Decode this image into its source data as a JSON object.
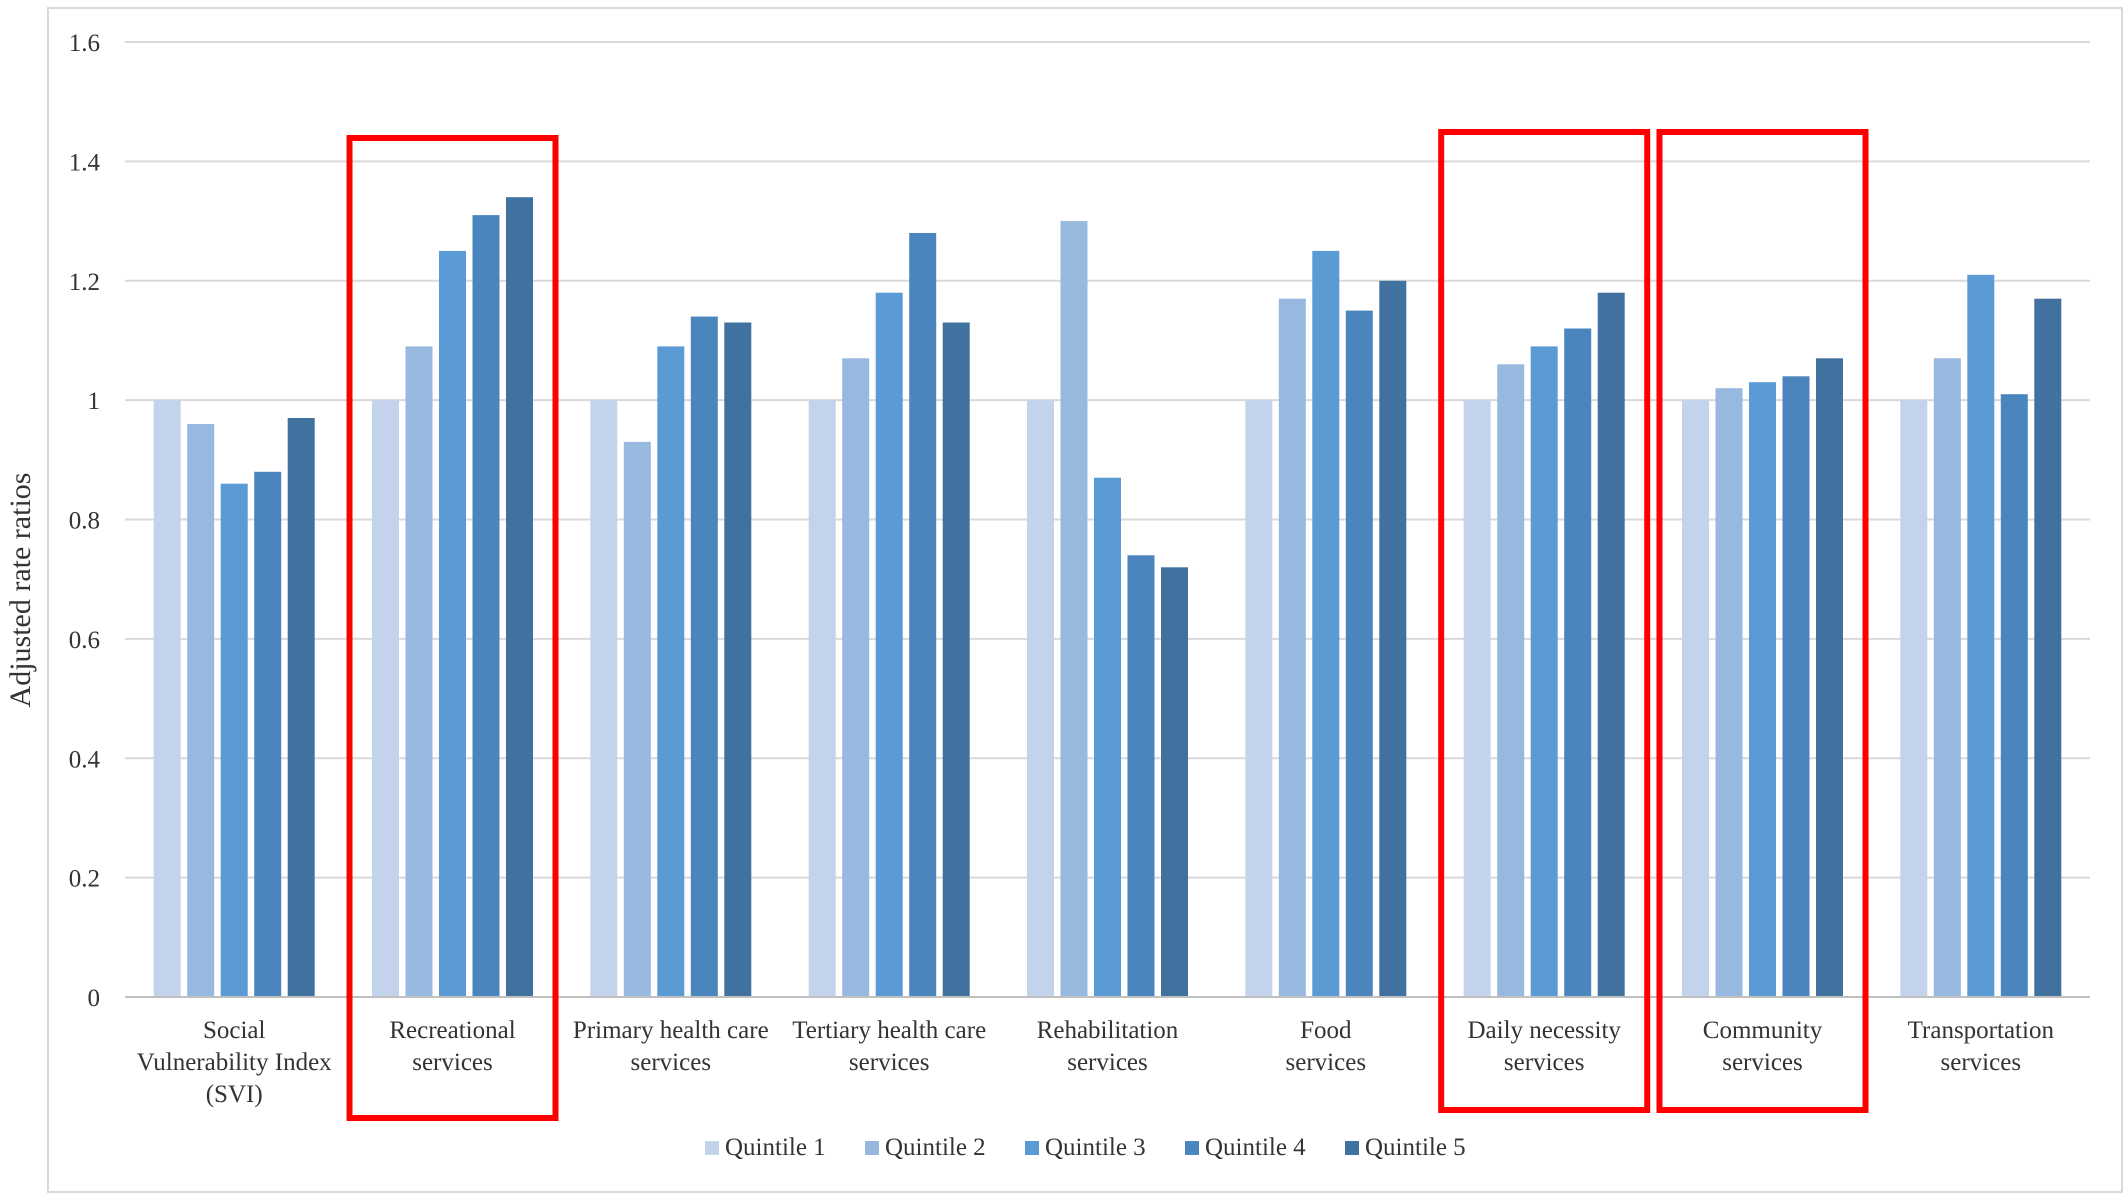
{
  "chart_data": {
    "type": "bar",
    "ylabel": "Adjusted rate ratios",
    "ylim": [
      0,
      1.6
    ],
    "yticks": [
      0,
      0.2,
      0.4,
      0.6,
      0.8,
      1,
      1.2,
      1.4,
      1.6
    ],
    "grid": true,
    "legend_placement": "bottom-center",
    "categories": [
      [
        "Social",
        "Vulnerability Index",
        "(SVI)"
      ],
      [
        "Recreational",
        "services"
      ],
      [
        "Primary health care",
        "services"
      ],
      [
        "Tertiary health care",
        "services"
      ],
      [
        "Rehabilitation",
        "services"
      ],
      [
        "Food",
        "services"
      ],
      [
        "Daily necessity",
        "services"
      ],
      [
        "Community",
        "services"
      ],
      [
        "Transportation",
        "services"
      ]
    ],
    "series": [
      {
        "name": "Quintile 1",
        "color": "#c3d3eb",
        "values": [
          1.0,
          1.0,
          1.0,
          1.0,
          1.0,
          1.0,
          1.0,
          1.0,
          1.0
        ]
      },
      {
        "name": "Quintile 2",
        "color": "#97b9e0",
        "values": [
          0.96,
          1.09,
          0.93,
          1.07,
          1.3,
          1.17,
          1.06,
          1.02,
          1.07
        ]
      },
      {
        "name": "Quintile 3",
        "color": "#5b9bd5",
        "values": [
          0.86,
          1.25,
          1.09,
          1.18,
          0.87,
          1.25,
          1.09,
          1.03,
          1.21
        ]
      },
      {
        "name": "Quintile 4",
        "color": "#4a86bd",
        "values": [
          0.88,
          1.31,
          1.14,
          1.28,
          0.74,
          1.15,
          1.12,
          1.04,
          1.01
        ]
      },
      {
        "name": "Quintile 5",
        "color": "#41729f",
        "values": [
          0.97,
          1.34,
          1.13,
          1.13,
          0.72,
          1.2,
          1.18,
          1.07,
          1.17
        ]
      }
    ],
    "highlighted_categories": [
      1,
      6,
      7
    ],
    "highlight_color": "#ff0000"
  }
}
